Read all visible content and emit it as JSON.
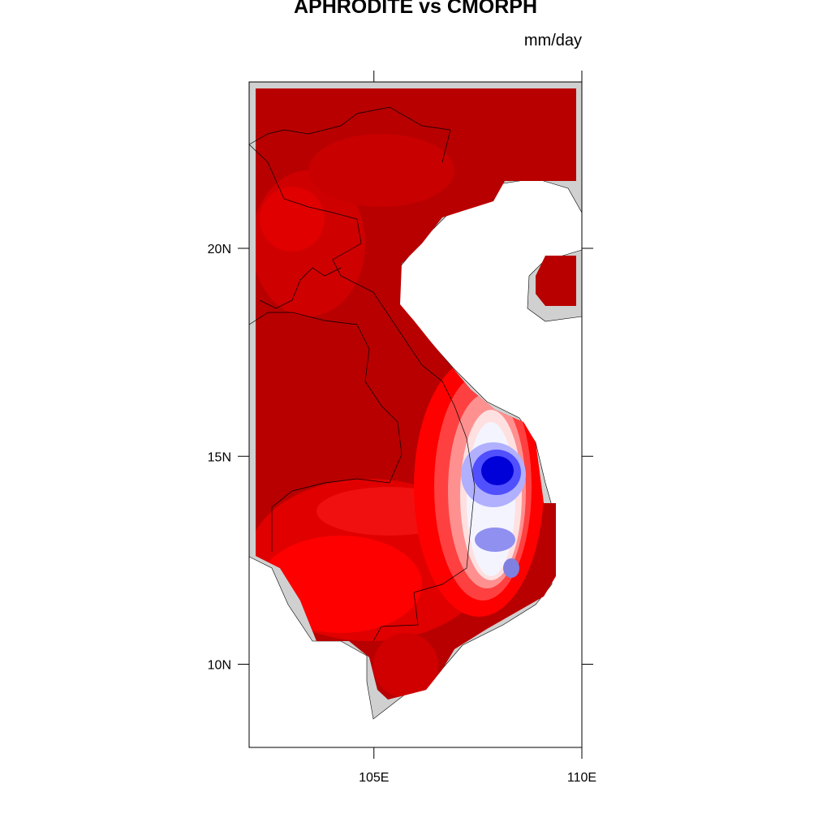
{
  "map": {
    "title": "APHRODITE vs CMORPH",
    "units": "mm/day",
    "xlim": [
      102,
      110
    ],
    "ylim": [
      8,
      24
    ],
    "lat_ticks": [
      {
        "value": 20,
        "label": "20N"
      },
      {
        "value": 15,
        "label": "15N"
      },
      {
        "value": 10,
        "label": "10N"
      }
    ],
    "lon_ticks": [
      {
        "value": 105,
        "label": "105E"
      },
      {
        "value": 110,
        "label": "110E"
      }
    ]
  }
}
